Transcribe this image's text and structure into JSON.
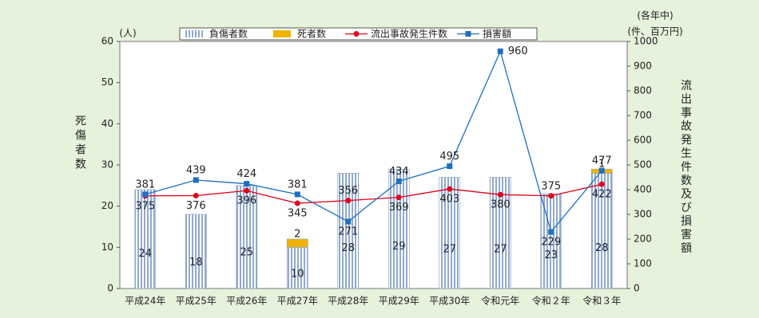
{
  "chart_data": {
    "type": "bar-line",
    "y_unit": "(人)",
    "y2_note": "(各年中)",
    "y2_unit": "(件、百万円)",
    "ylabel": "死傷者数",
    "y2label": "流出事故発生件数及び損害額",
    "categories": [
      "平成24年",
      "平成25年",
      "平成26年",
      "平成27年",
      "平成28年",
      "平成29年",
      "平成30年",
      "令和元年",
      "令和２年",
      "令和３年"
    ],
    "series": [
      {
        "name": "負傷者数",
        "kind": "bar",
        "color": "#a9bedc",
        "values": [
          24,
          18,
          25,
          10,
          28,
          29,
          27,
          27,
          23,
          28
        ]
      },
      {
        "name": "死者数",
        "kind": "bar",
        "color": "#f0b400",
        "values": [
          null,
          null,
          null,
          2,
          null,
          null,
          null,
          null,
          null,
          1
        ]
      },
      {
        "name": "流出事故発生件数",
        "kind": "line",
        "axis": "y2",
        "color": "#e0001a",
        "values": [
          375,
          376,
          396,
          345,
          356,
          369,
          403,
          380,
          375,
          422
        ]
      },
      {
        "name": "損害額",
        "kind": "line",
        "axis": "y2",
        "color": "#1f6fc0",
        "values": [
          381,
          439,
          424,
          381,
          271,
          434,
          495,
          960,
          229,
          477
        ]
      }
    ],
    "ylim": [
      0,
      60
    ],
    "yticks": [
      0,
      10,
      20,
      30,
      40,
      50,
      60
    ],
    "y2lim": [
      0,
      1000
    ],
    "y2ticks": [
      0,
      100,
      200,
      300,
      400,
      500,
      600,
      700,
      800,
      900,
      1000
    ]
  }
}
